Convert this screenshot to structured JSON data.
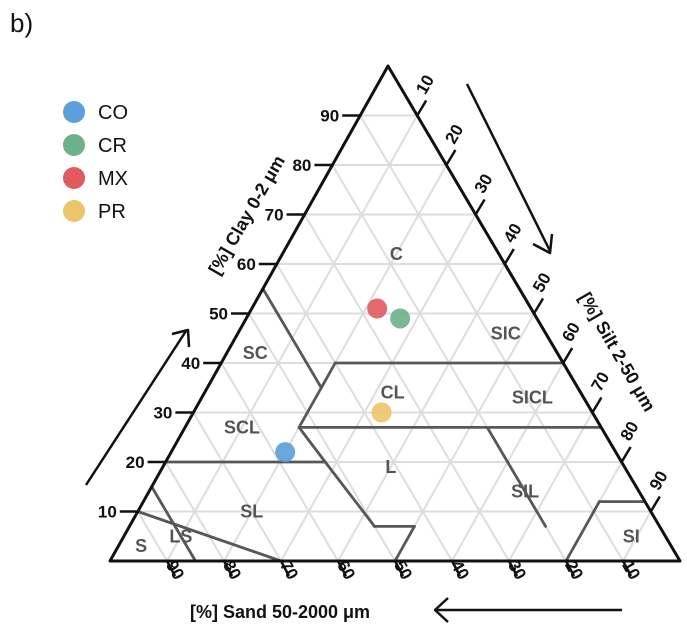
{
  "panel_label": "b)",
  "chart_data": {
    "type": "ternary-scatter",
    "title": "",
    "axes": {
      "clay": {
        "label": "[%] Clay 0-2 μm",
        "ticks": [
          10,
          20,
          30,
          40,
          50,
          60,
          70,
          80,
          90
        ]
      },
      "silt": {
        "label": "[%] Silt 2-50 μm",
        "ticks": [
          10,
          20,
          30,
          40,
          50,
          60,
          70,
          80,
          90
        ]
      },
      "sand": {
        "label": "[%] Sand 50-2000 μm",
        "ticks": [
          90,
          80,
          70,
          60,
          50,
          40,
          30,
          20,
          10
        ]
      }
    },
    "grid": true,
    "legend_position": "top-left",
    "regions": [
      {
        "label": "C",
        "clay": 62,
        "silt": 20,
        "sand": 18
      },
      {
        "label": "SC",
        "clay": 42,
        "silt": 5,
        "sand": 53
      },
      {
        "label": "SCL",
        "clay": 27,
        "silt": 10,
        "sand": 63
      },
      {
        "label": "CL",
        "clay": 34,
        "silt": 33,
        "sand": 33
      },
      {
        "label": "L",
        "clay": 19,
        "silt": 40,
        "sand": 41
      },
      {
        "label": "SL",
        "clay": 10,
        "silt": 20,
        "sand": 70
      },
      {
        "label": "LS",
        "clay": 5,
        "silt": 10,
        "sand": 85
      },
      {
        "label": "S",
        "clay": 3,
        "silt": 4,
        "sand": 93
      },
      {
        "label": "SIC",
        "clay": 46,
        "silt": 47,
        "sand": 7
      },
      {
        "label": "SICL",
        "clay": 33,
        "silt": 58,
        "sand": 9
      },
      {
        "label": "SIL",
        "clay": 14,
        "silt": 66,
        "sand": 20
      },
      {
        "label": "SI",
        "clay": 5,
        "silt": 89,
        "sand": 6
      }
    ],
    "series": [
      {
        "name": "CO",
        "color": "#5b9fdb",
        "clay": 22,
        "silt": 20,
        "sand": 58
      },
      {
        "name": "CR",
        "color": "#6db18b",
        "clay": 49,
        "silt": 27,
        "sand": 24
      },
      {
        "name": "MX",
        "color": "#e05a5e",
        "clay": 51,
        "silt": 22,
        "sand": 27
      },
      {
        "name": "PR",
        "color": "#ecc46a",
        "clay": 30,
        "silt": 33,
        "sand": 37
      }
    ]
  }
}
